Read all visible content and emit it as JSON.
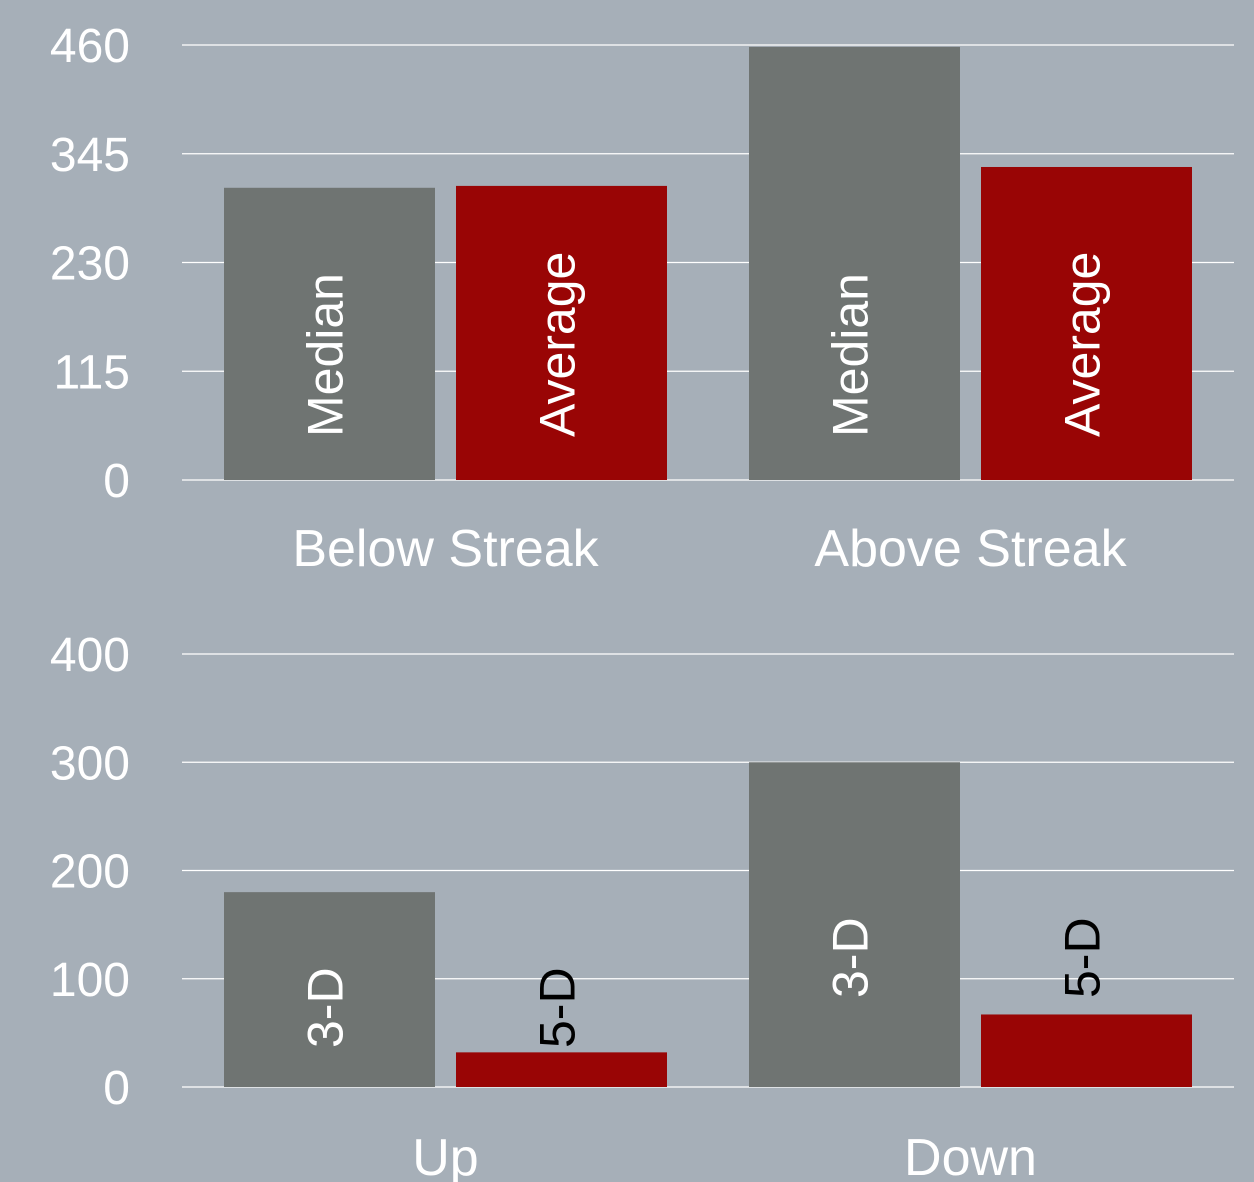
{
  "chart_data": [
    {
      "type": "bar",
      "categories": [
        "Below Streak",
        "Above Streak"
      ],
      "series": [
        {
          "name": "Median",
          "color": "#6f7472",
          "label_color": "#ffffff",
          "values": [
            309,
            458
          ]
        },
        {
          "name": "Average",
          "color": "#990505",
          "label_color": "#ffffff",
          "values": [
            311,
            331
          ]
        }
      ],
      "ylim": [
        0,
        460
      ],
      "yticks": [
        0,
        115,
        230,
        345,
        460
      ],
      "grid": true
    },
    {
      "type": "bar",
      "categories": [
        "Up",
        "Down"
      ],
      "series": [
        {
          "name": "3-D",
          "color": "#6f7472",
          "label_color": "#ffffff",
          "values": [
            180,
            300
          ]
        },
        {
          "name": "5-D",
          "color": "#990505",
          "label_color": "#000000",
          "values": [
            32,
            67
          ]
        }
      ],
      "ylim": [
        0,
        400
      ],
      "yticks": [
        0,
        100,
        200,
        300,
        400
      ],
      "grid": true
    }
  ]
}
